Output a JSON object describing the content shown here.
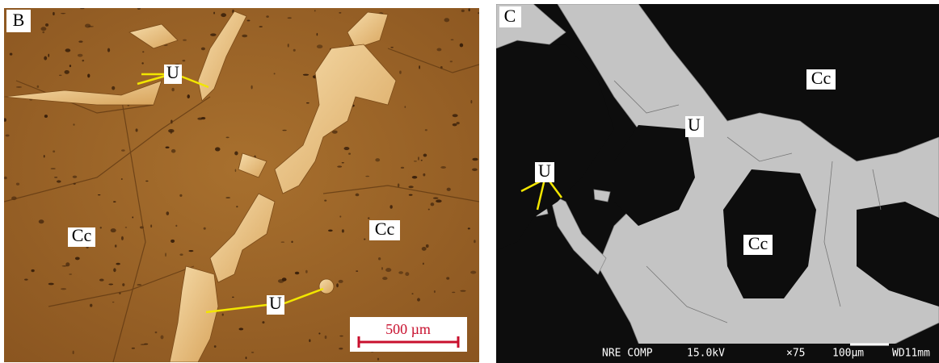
{
  "panels": [
    {
      "label": "B",
      "annotations": [
        "U",
        "U",
        "Cc",
        "Cc"
      ],
      "scale_bar": "500 µm"
    },
    {
      "label": "C",
      "annotations": [
        "Cc",
        "U",
        "U",
        "Cc"
      ],
      "footer": [
        "NRE COMP",
        "15.0kV",
        "×75",
        "100µm",
        "WD11mm"
      ]
    }
  ]
}
